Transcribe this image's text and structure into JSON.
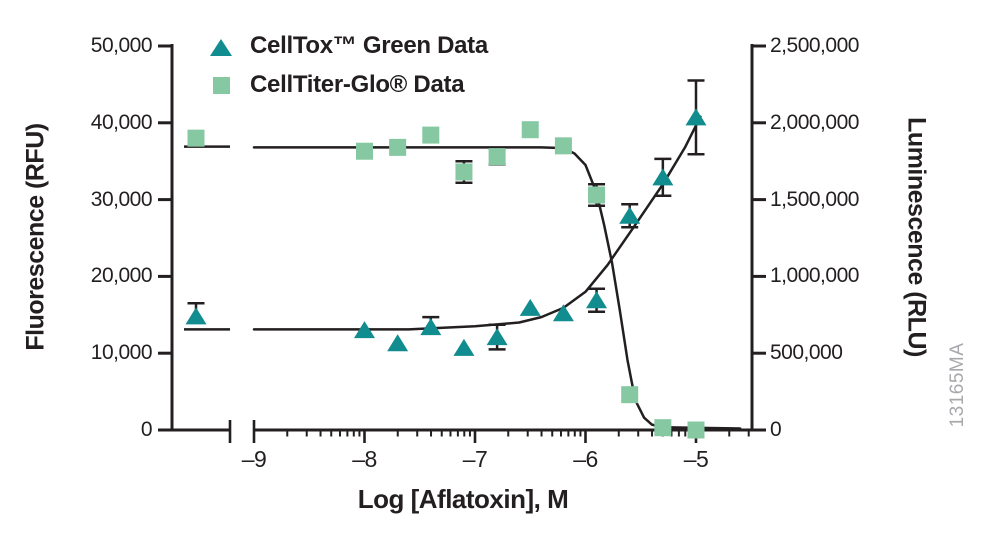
{
  "figure": {
    "watermark": "13165MA",
    "legend": [
      {
        "label": "CellTox™ Green Data",
        "marker": "triangle",
        "color": "#118C8F"
      },
      {
        "label": "CellTiter-Glo® Data",
        "marker": "square",
        "color": "#85C8A2"
      }
    ],
    "colors": {
      "line": "#231F20",
      "celltox": "#118C8F",
      "celltiter": "#85C8A2",
      "watermark": "#A7A9AC"
    }
  },
  "chart_data": {
    "type": "scatter",
    "title": "",
    "xlabel": "Log [Aflatoxin], M",
    "ylabel_left": "Fluorescence (RFU)",
    "ylabel_right": "Luminescence (RLU)",
    "x_axis": {
      "scale": "log10",
      "range": [
        -9,
        -4.55
      ],
      "axis_break": true,
      "major_ticks": [
        {
          "label": "–9",
          "log": -9
        },
        {
          "label": "–8",
          "log": -8
        },
        {
          "label": "–7",
          "log": -7
        },
        {
          "label": "–6",
          "log": -6
        },
        {
          "label": "–5",
          "log": -5
        }
      ]
    },
    "y_left": {
      "range": [
        0,
        50000
      ],
      "ticks": [
        {
          "label": "0",
          "value": 0
        },
        {
          "label": "10,000",
          "value": 10000
        },
        {
          "label": "20,000",
          "value": 20000
        },
        {
          "label": "30,000",
          "value": 30000
        },
        {
          "label": "40,000",
          "value": 40000
        },
        {
          "label": "50,000",
          "value": 50000
        }
      ]
    },
    "y_right": {
      "range": [
        0,
        2500000
      ],
      "ticks": [
        {
          "label": "0",
          "value": 0
        },
        {
          "label": "500,000",
          "value": 500000
        },
        {
          "label": "1,000,000",
          "value": 1000000
        },
        {
          "label": "1,500,000",
          "value": 1500000
        },
        {
          "label": "2,000,000",
          "value": 2000000
        },
        {
          "label": "2,500,000",
          "value": 2500000
        }
      ]
    },
    "series": [
      {
        "name": "CellTox™ Green Data",
        "marker": "triangle",
        "color": "#118C8F",
        "axis": "left",
        "units": "RFU",
        "points": [
          {
            "log": null,
            "position": "pre-break",
            "value": 14800,
            "err_up": 1700
          },
          {
            "log": -8.0,
            "value": 13000
          },
          {
            "log": -7.7,
            "value": 11300
          },
          {
            "log": -7.4,
            "value": 13400,
            "err_up": 1300
          },
          {
            "log": -7.1,
            "value": 10700
          },
          {
            "log": -6.8,
            "value": 12100,
            "err": 1600
          },
          {
            "log": -6.5,
            "value": 15900
          },
          {
            "log": -6.2,
            "value": 15200
          },
          {
            "log": -5.9,
            "value": 16900,
            "err": 1500
          },
          {
            "log": -5.6,
            "value": 27900,
            "err": 1500
          },
          {
            "log": -5.3,
            "value": 32900,
            "err": 2400
          },
          {
            "log": -5.0,
            "value": 40700,
            "err": 4800
          }
        ]
      },
      {
        "name": "CellTiter-Glo® Data",
        "marker": "square",
        "color": "#85C8A2",
        "axis": "right",
        "units": "RLU",
        "points": [
          {
            "log": null,
            "position": "pre-break",
            "value": 1900000
          },
          {
            "log": -8.0,
            "value": 1815000
          },
          {
            "log": -7.7,
            "value": 1840000
          },
          {
            "log": -7.4,
            "value": 1920000
          },
          {
            "log": -7.1,
            "value": 1680000,
            "err": 70000
          },
          {
            "log": -6.8,
            "value": 1780000,
            "err": 50000
          },
          {
            "log": -6.5,
            "value": 1955000
          },
          {
            "log": -6.2,
            "value": 1850000
          },
          {
            "log": -5.9,
            "value": 1530000,
            "err": 70000
          },
          {
            "log": -5.6,
            "value": 230000
          },
          {
            "log": -5.3,
            "value": 15000
          },
          {
            "log": -5.0,
            "value": 0
          }
        ]
      }
    ],
    "fit_curves": [
      {
        "series": "CellTox™ Green Data",
        "axis": "left",
        "pre_break_value": 13100,
        "points": [
          [
            -9,
            13100
          ],
          [
            -7.6,
            13100
          ],
          [
            -7.0,
            13500
          ],
          [
            -6.6,
            14000
          ],
          [
            -6.4,
            14700
          ],
          [
            -6.2,
            15900
          ],
          [
            -6.0,
            18000
          ],
          [
            -5.8,
            21500
          ],
          [
            -5.55,
            26700
          ],
          [
            -5.3,
            32000
          ],
          [
            -5.1,
            36800
          ],
          [
            -4.96,
            40800
          ]
        ]
      },
      {
        "series": "CellTiter-Glo® Data",
        "axis": "right",
        "pre_break_value": 1845000,
        "points": [
          [
            -9,
            1840000
          ],
          [
            -6.4,
            1840000
          ],
          [
            -6.2,
            1835000
          ],
          [
            -6.1,
            1800000
          ],
          [
            -6.0,
            1725000
          ],
          [
            -5.9,
            1545000
          ],
          [
            -5.83,
            1330000
          ],
          [
            -5.76,
            1090000
          ],
          [
            -5.69,
            780000
          ],
          [
            -5.62,
            455000
          ],
          [
            -5.55,
            195000
          ],
          [
            -5.47,
            80000
          ],
          [
            -5.4,
            35000
          ],
          [
            -5.3,
            18000
          ],
          [
            -4.6,
            10000
          ]
        ]
      }
    ],
    "legend_position": "top-left-inside",
    "grid": false
  }
}
